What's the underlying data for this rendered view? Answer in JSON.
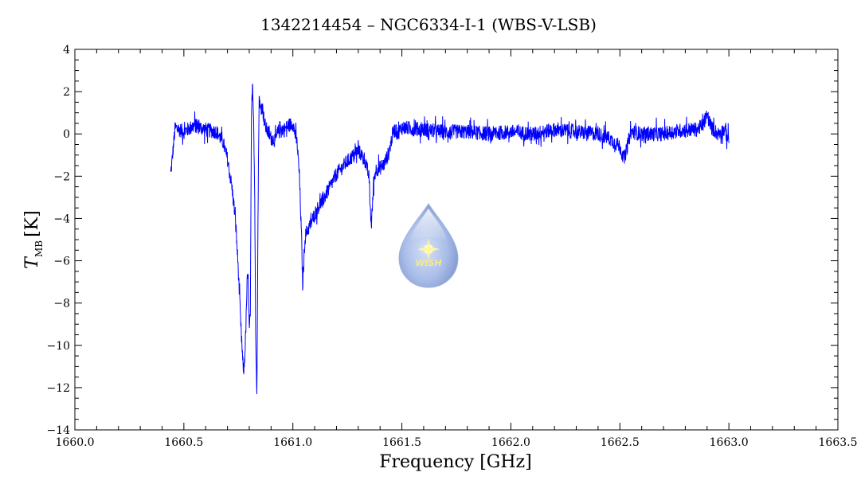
{
  "chart_data": {
    "type": "line",
    "title": "1342214454 – NGC6334-I-1 (WBS-V-LSB)",
    "xlabel": "Frequency [GHz]",
    "ylabel_main": "T",
    "ylabel_sub": "MB",
    "ylabel_unit": "[K]",
    "xlim": [
      1660.0,
      1663.5
    ],
    "ylim": [
      -14,
      4
    ],
    "xticks": [
      1660.0,
      1660.5,
      1661.0,
      1661.5,
      1662.0,
      1662.5,
      1663.0,
      1663.5
    ],
    "xtick_labels": [
      "1660.0",
      "1660.5",
      "1661.0",
      "1661.5",
      "1662.0",
      "1662.5",
      "1663.0",
      "1663.5"
    ],
    "yticks": [
      -14,
      -12,
      -10,
      -8,
      -6,
      -4,
      -2,
      0,
      2,
      4
    ],
    "ytick_labels": [
      "−14",
      "−12",
      "−10",
      "−8",
      "−6",
      "−4",
      "−2",
      "0",
      "2",
      "4"
    ],
    "grid": false,
    "line_color": "#0000ff",
    "series": [
      {
        "x": [
          1660.44,
          1660.46,
          1660.5,
          1660.55,
          1660.6,
          1660.65,
          1660.68,
          1660.7,
          1660.72,
          1660.73,
          1660.74,
          1660.75,
          1660.76,
          1660.77,
          1660.775,
          1660.78,
          1660.785,
          1660.79,
          1660.795,
          1660.8,
          1660.805,
          1660.81,
          1660.815,
          1660.82,
          1660.825,
          1660.83,
          1660.835,
          1660.84,
          1660.845,
          1660.85,
          1660.86,
          1660.87,
          1660.88,
          1660.9,
          1660.92,
          1660.94,
          1660.96,
          1660.98,
          1661.0,
          1661.02,
          1661.03,
          1661.04,
          1661.045,
          1661.05,
          1661.055,
          1661.06,
          1661.08,
          1661.1,
          1661.12,
          1661.15,
          1661.18,
          1661.2,
          1661.25,
          1661.3,
          1661.33,
          1661.35,
          1661.355,
          1661.36,
          1661.365,
          1661.37,
          1661.38,
          1661.4,
          1661.42,
          1661.44,
          1661.46,
          1661.47,
          1661.48,
          1661.5,
          1661.6,
          1661.7,
          1661.8,
          1661.9,
          1662.0,
          1662.1,
          1662.2,
          1662.3,
          1662.4,
          1662.45,
          1662.5,
          1662.52,
          1662.55,
          1662.6,
          1662.7,
          1662.8,
          1662.85,
          1662.88,
          1662.9,
          1662.92,
          1662.95,
          1662.98,
          1663.0
        ],
        "y": [
          -1.9,
          0.3,
          0.1,
          0.4,
          0.2,
          0.1,
          -0.4,
          -1.2,
          -2.5,
          -3.4,
          -4.6,
          -6.5,
          -8.8,
          -10.8,
          -11.2,
          -10.4,
          -9.0,
          -7.0,
          -6.8,
          -9.4,
          -8.4,
          0.8,
          2.5,
          0.8,
          -3.0,
          -10.3,
          -12.1,
          -4.0,
          1.8,
          1.2,
          1.3,
          0.5,
          0.2,
          -0.2,
          -0.3,
          0.3,
          0.2,
          0.4,
          0.5,
          -0.5,
          -2.0,
          -5.0,
          -7.2,
          -6.0,
          -5.0,
          -4.7,
          -4.3,
          -3.8,
          -3.4,
          -2.9,
          -2.3,
          -1.9,
          -1.3,
          -0.8,
          -1.2,
          -2.1,
          -3.5,
          -4.3,
          -3.5,
          -2.3,
          -1.7,
          -1.6,
          -1.4,
          -0.9,
          0.1,
          0.2,
          0.0,
          0.3,
          0.2,
          0.1,
          0.1,
          0.0,
          0.1,
          0.0,
          0.2,
          0.1,
          0.0,
          -0.2,
          -0.6,
          -1.2,
          0.1,
          0.0,
          0.0,
          0.2,
          0.2,
          0.4,
          0.9,
          0.3,
          0.0,
          0.2,
          -0.3
        ],
        "noise_amplitude": 0.35
      }
    ],
    "logo_text": "WISH"
  }
}
